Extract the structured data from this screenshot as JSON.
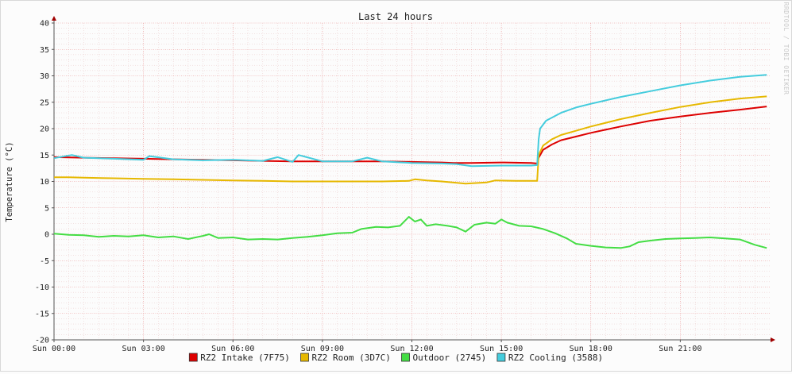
{
  "chart_data": {
    "type": "line",
    "title": "Last 24 hours",
    "ylabel": "Temperature (°C)",
    "xlabel": "",
    "watermark": "RRDTOOL / TOBI OETIKER",
    "ylim": [
      -20,
      40
    ],
    "xlim": [
      0,
      24
    ],
    "yticks": [
      40,
      35,
      30,
      25,
      20,
      15,
      10,
      5,
      0,
      -5,
      -10,
      -15,
      -20
    ],
    "xticks": [
      {
        "x": 0,
        "label": "Sun 00:00"
      },
      {
        "x": 3,
        "label": "Sun 03:00"
      },
      {
        "x": 6,
        "label": "Sun 06:00"
      },
      {
        "x": 9,
        "label": "Sun 09:00"
      },
      {
        "x": 12,
        "label": "Sun 12:00"
      },
      {
        "x": 15,
        "label": "Sun 15:00"
      },
      {
        "x": 18,
        "label": "Sun 18:00"
      },
      {
        "x": 21,
        "label": "Sun 21:00"
      }
    ],
    "grid": true,
    "legend_position": "bottom",
    "series": [
      {
        "name": "RZ2 Intake (7F75)",
        "color": "#dd0000",
        "points": [
          [
            0,
            14.6
          ],
          [
            1,
            14.5
          ],
          [
            2,
            14.4
          ],
          [
            3,
            14.3
          ],
          [
            4,
            14.2
          ],
          [
            5,
            14.1
          ],
          [
            6,
            14.0
          ],
          [
            7,
            13.9
          ],
          [
            8,
            13.8
          ],
          [
            9,
            13.8
          ],
          [
            10,
            13.8
          ],
          [
            11,
            13.8
          ],
          [
            12,
            13.7
          ],
          [
            13,
            13.6
          ],
          [
            13.4,
            13.5
          ],
          [
            14,
            13.5
          ],
          [
            15,
            13.6
          ],
          [
            16,
            13.5
          ],
          [
            16.2,
            13.4
          ],
          [
            16.25,
            14.5
          ],
          [
            16.4,
            16.0
          ],
          [
            16.7,
            17.0
          ],
          [
            17,
            17.8
          ],
          [
            17.5,
            18.5
          ],
          [
            18,
            19.2
          ],
          [
            19,
            20.4
          ],
          [
            20,
            21.5
          ],
          [
            21,
            22.3
          ],
          [
            22,
            23.0
          ],
          [
            23,
            23.6
          ],
          [
            23.9,
            24.2
          ]
        ]
      },
      {
        "name": "RZ2 Room (3D7C)",
        "color": "#e6b800",
        "points": [
          [
            0,
            10.8
          ],
          [
            0.5,
            10.8
          ],
          [
            1,
            10.7
          ],
          [
            2,
            10.6
          ],
          [
            3,
            10.5
          ],
          [
            4,
            10.4
          ],
          [
            5,
            10.3
          ],
          [
            6,
            10.2
          ],
          [
            7,
            10.1
          ],
          [
            8,
            10.0
          ],
          [
            9,
            10.0
          ],
          [
            10,
            10.0
          ],
          [
            11,
            10.0
          ],
          [
            11.9,
            10.1
          ],
          [
            12.1,
            10.4
          ],
          [
            12.5,
            10.2
          ],
          [
            13,
            10.0
          ],
          [
            13.8,
            9.6
          ],
          [
            14.5,
            9.8
          ],
          [
            14.8,
            10.2
          ],
          [
            15.5,
            10.1
          ],
          [
            16.2,
            10.1
          ],
          [
            16.25,
            15.0
          ],
          [
            16.4,
            16.8
          ],
          [
            16.7,
            18.0
          ],
          [
            17,
            18.8
          ],
          [
            17.5,
            19.6
          ],
          [
            18,
            20.4
          ],
          [
            19,
            21.8
          ],
          [
            20,
            23.0
          ],
          [
            21,
            24.1
          ],
          [
            22,
            25.0
          ],
          [
            23,
            25.7
          ],
          [
            23.9,
            26.1
          ]
        ]
      },
      {
        "name": "Outdoor (2745)",
        "color": "#44dd44",
        "points": [
          [
            0,
            0.1
          ],
          [
            0.5,
            -0.1
          ],
          [
            1,
            -0.2
          ],
          [
            1.5,
            -0.5
          ],
          [
            2,
            -0.3
          ],
          [
            2.5,
            -0.4
          ],
          [
            3,
            -0.2
          ],
          [
            3.5,
            -0.6
          ],
          [
            4,
            -0.4
          ],
          [
            4.5,
            -0.9
          ],
          [
            5,
            -0.3
          ],
          [
            5.2,
            0.0
          ],
          [
            5.5,
            -0.7
          ],
          [
            6,
            -0.6
          ],
          [
            6.5,
            -1.0
          ],
          [
            7,
            -0.9
          ],
          [
            7.5,
            -1.0
          ],
          [
            8,
            -0.7
          ],
          [
            8.5,
            -0.5
          ],
          [
            9,
            -0.2
          ],
          [
            9.5,
            0.2
          ],
          [
            10,
            0.3
          ],
          [
            10.3,
            1.0
          ],
          [
            10.8,
            1.4
          ],
          [
            11.2,
            1.3
          ],
          [
            11.6,
            1.6
          ],
          [
            11.9,
            3.3
          ],
          [
            12.1,
            2.4
          ],
          [
            12.3,
            2.8
          ],
          [
            12.5,
            1.6
          ],
          [
            12.8,
            1.9
          ],
          [
            13.2,
            1.6
          ],
          [
            13.5,
            1.3
          ],
          [
            13.8,
            0.5
          ],
          [
            14.1,
            1.8
          ],
          [
            14.5,
            2.2
          ],
          [
            14.8,
            2.0
          ],
          [
            15.0,
            2.8
          ],
          [
            15.2,
            2.2
          ],
          [
            15.6,
            1.6
          ],
          [
            16.0,
            1.5
          ],
          [
            16.4,
            1.0
          ],
          [
            16.8,
            0.2
          ],
          [
            17.2,
            -0.8
          ],
          [
            17.5,
            -1.8
          ],
          [
            18,
            -2.2
          ],
          [
            18.5,
            -2.5
          ],
          [
            19,
            -2.6
          ],
          [
            19.3,
            -2.3
          ],
          [
            19.6,
            -1.5
          ],
          [
            20,
            -1.2
          ],
          [
            20.5,
            -0.9
          ],
          [
            21,
            -0.8
          ],
          [
            21.5,
            -0.7
          ],
          [
            22,
            -0.6
          ],
          [
            22.5,
            -0.8
          ],
          [
            23,
            -1.0
          ],
          [
            23.5,
            -2.0
          ],
          [
            23.9,
            -2.6
          ]
        ]
      },
      {
        "name": "RZ2 Cooling (3588)",
        "color": "#44ccdd",
        "points": [
          [
            0,
            14.4
          ],
          [
            0.6,
            15.0
          ],
          [
            1,
            14.5
          ],
          [
            2,
            14.3
          ],
          [
            3,
            14.1
          ],
          [
            3.2,
            14.8
          ],
          [
            4,
            14.2
          ],
          [
            5,
            14.0
          ],
          [
            6,
            14.1
          ],
          [
            7,
            13.9
          ],
          [
            7.5,
            14.6
          ],
          [
            8,
            13.7
          ],
          [
            8.2,
            15.0
          ],
          [
            9,
            13.8
          ],
          [
            10,
            13.8
          ],
          [
            10.5,
            14.5
          ],
          [
            11,
            13.8
          ],
          [
            12,
            13.5
          ],
          [
            13,
            13.4
          ],
          [
            13.5,
            13.3
          ],
          [
            14,
            12.9
          ],
          [
            15,
            13.0
          ],
          [
            16,
            13.0
          ],
          [
            16.2,
            13.1
          ],
          [
            16.25,
            18.0
          ],
          [
            16.3,
            20.0
          ],
          [
            16.5,
            21.5
          ],
          [
            17,
            23.0
          ],
          [
            17.5,
            24.0
          ],
          [
            18,
            24.7
          ],
          [
            19,
            26.0
          ],
          [
            20,
            27.1
          ],
          [
            21,
            28.2
          ],
          [
            22,
            29.1
          ],
          [
            23,
            29.8
          ],
          [
            23.9,
            30.2
          ]
        ]
      }
    ]
  }
}
